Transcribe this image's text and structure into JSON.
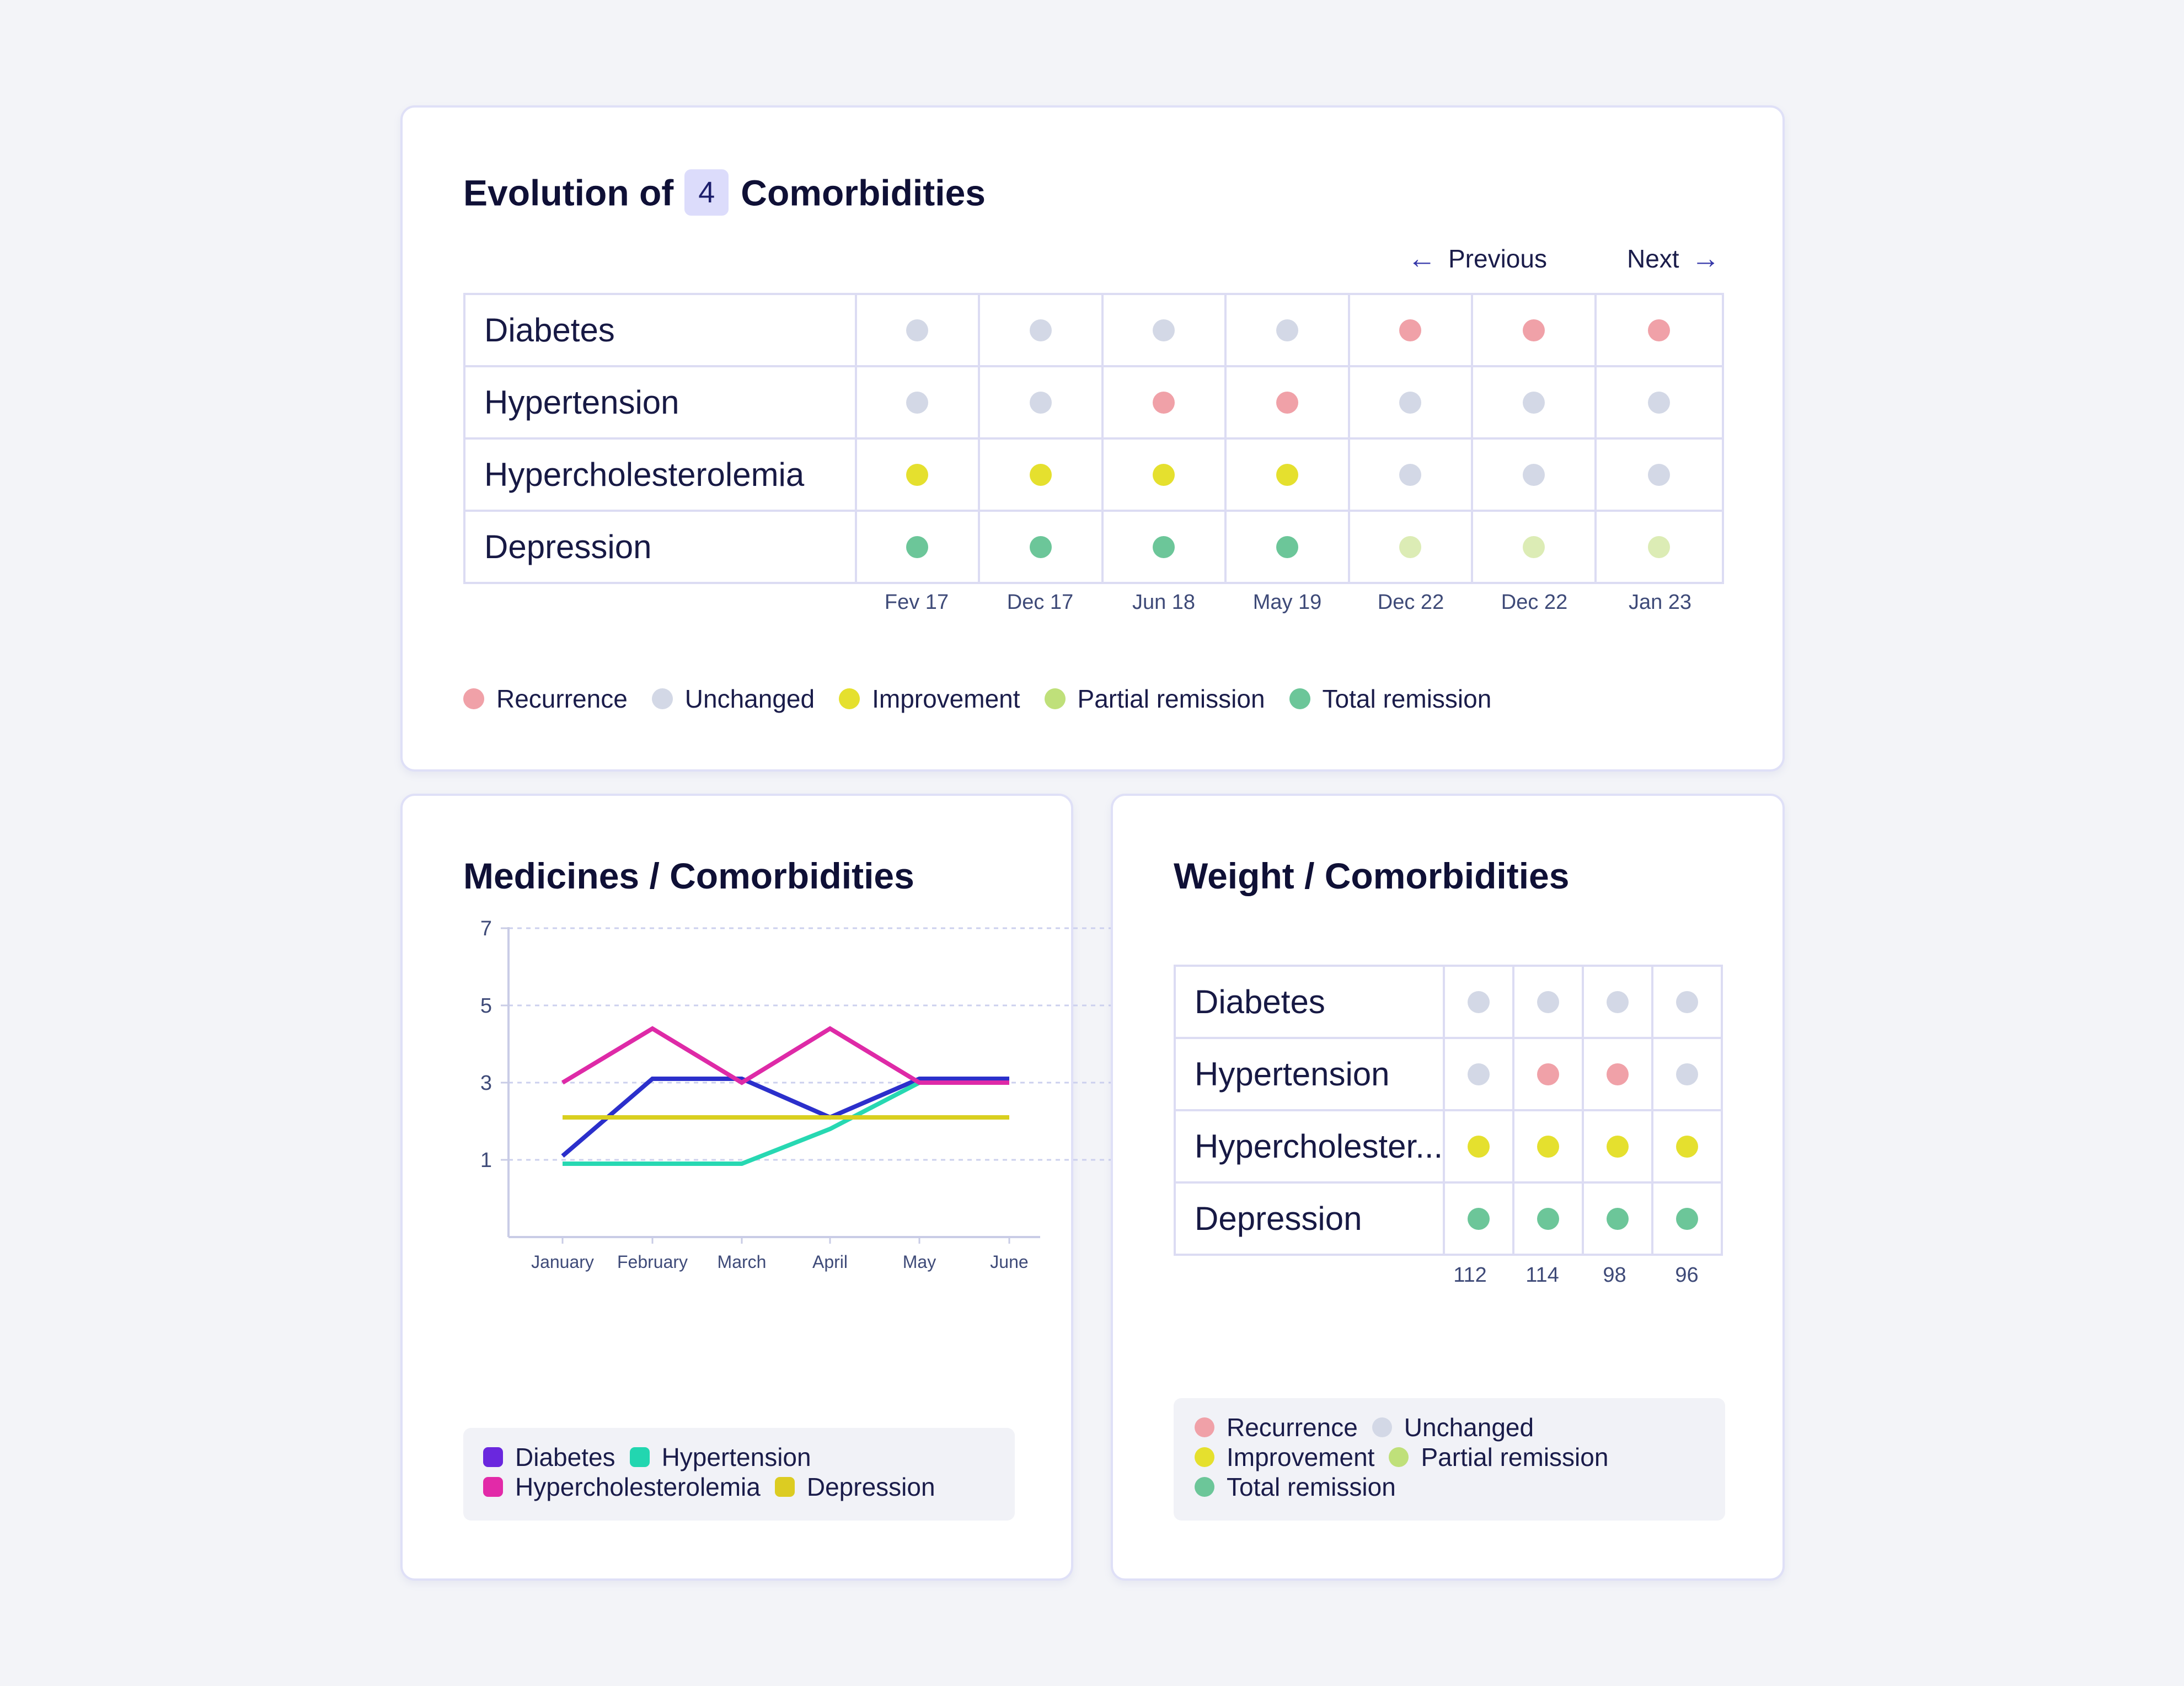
{
  "colors": {
    "recurrence": "#f0a1a8",
    "unchanged": "#d3d8e6",
    "improvement": "#e5e02e",
    "partial_remission": "#dcecb5",
    "total_remission": "#6cc699",
    "legend_partial_remission": "#bfe07a",
    "line_diabetes": "#2b2fcb",
    "line_hypertension": "#27d8b2",
    "line_hypercholesterolemia": "#de2aa7",
    "line_depression": "#d9cf1f",
    "legend_diabetes": "#6a27de",
    "legend_hypertension": "#22d6b0",
    "legend_hypercholesterolemia": "#e22aa8",
    "legend_depression": "#dccc22"
  },
  "evolution": {
    "title_prefix": "Evolution of",
    "count": "4",
    "title_suffix": "Comorbidities",
    "previous_label": "Previous",
    "next_label": "Next",
    "rows": [
      {
        "label": "Diabetes",
        "statuses": [
          "unchanged",
          "unchanged",
          "unchanged",
          "unchanged",
          "recurrence",
          "recurrence",
          "recurrence"
        ]
      },
      {
        "label": "Hypertension",
        "statuses": [
          "unchanged",
          "unchanged",
          "recurrence",
          "recurrence",
          "unchanged",
          "unchanged",
          "unchanged"
        ]
      },
      {
        "label": "Hypercholesterolemia",
        "statuses": [
          "improvement",
          "improvement",
          "improvement",
          "improvement",
          "unchanged",
          "unchanged",
          "unchanged"
        ]
      },
      {
        "label": "Depression",
        "statuses": [
          "total_remission",
          "total_remission",
          "total_remission",
          "total_remission",
          "partial_remission",
          "partial_remission",
          "partial_remission"
        ]
      }
    ],
    "dates": [
      "Fev 17",
      "Dec 17",
      "Jun 18",
      "May 19",
      "Dec 22",
      "Dec 22",
      "Jan 23"
    ],
    "legend": [
      {
        "key": "recurrence",
        "label": "Recurrence"
      },
      {
        "key": "unchanged",
        "label": "Unchanged"
      },
      {
        "key": "improvement",
        "label": "Improvement"
      },
      {
        "key": "legend_partial_remission",
        "label": "Partial remission"
      },
      {
        "key": "total_remission",
        "label": "Total remission"
      }
    ]
  },
  "medicines": {
    "title": "Medicines / Comorbidities",
    "legend": [
      {
        "key": "legend_diabetes",
        "label": "Diabetes"
      },
      {
        "key": "legend_hypertension",
        "label": "Hypertension"
      },
      {
        "key": "legend_hypercholesterolemia",
        "label": "Hypercholesterolemia"
      },
      {
        "key": "legend_depression",
        "label": "Depression"
      }
    ]
  },
  "weight": {
    "title": "Weight / Comorbidities",
    "rows": [
      {
        "label": "Diabetes",
        "statuses": [
          "unchanged",
          "unchanged",
          "unchanged",
          "unchanged"
        ]
      },
      {
        "label": "Hypertension",
        "statuses": [
          "unchanged",
          "recurrence",
          "recurrence",
          "unchanged"
        ]
      },
      {
        "label": "Hypercholester...",
        "statuses": [
          "improvement",
          "improvement",
          "improvement",
          "improvement"
        ]
      },
      {
        "label": "Depression",
        "statuses": [
          "total_remission",
          "total_remission",
          "total_remission",
          "total_remission"
        ]
      }
    ],
    "weights": [
      "112",
      "114",
      "98",
      "96"
    ],
    "legend_lines": [
      [
        {
          "key": "recurrence",
          "label": "Recurrence"
        },
        {
          "key": "unchanged",
          "label": "Unchanged"
        }
      ],
      [
        {
          "key": "improvement",
          "label": "Improvement"
        },
        {
          "key": "legend_partial_remission",
          "label": "Partial remission"
        }
      ],
      [
        {
          "key": "total_remission",
          "label": "Total remission"
        }
      ]
    ]
  },
  "chart_data": {
    "type": "line",
    "title": "",
    "xlabel": "",
    "ylabel": "",
    "categories": [
      "January",
      "February",
      "March",
      "April",
      "May",
      "June"
    ],
    "yticks": [
      1,
      3,
      5,
      7
    ],
    "ylim": [
      -1,
      7
    ],
    "grid": true,
    "series": [
      {
        "name": "Diabetes",
        "color_key": "line_diabetes",
        "values": [
          1.1,
          3.1,
          3.1,
          2.1,
          3.1,
          3.1
        ]
      },
      {
        "name": "Hypertension",
        "color_key": "line_hypertension",
        "values": [
          0.9,
          0.9,
          0.9,
          1.8,
          3.0,
          3.0
        ]
      },
      {
        "name": "Hypercholesterolemia",
        "color_key": "line_hypercholesterolemia",
        "values": [
          3.0,
          4.4,
          3.0,
          4.4,
          3.0,
          3.0
        ]
      },
      {
        "name": "Depression",
        "color_key": "line_depression",
        "values": [
          2.1,
          2.1,
          2.1,
          2.1,
          2.1,
          2.1
        ]
      }
    ]
  }
}
